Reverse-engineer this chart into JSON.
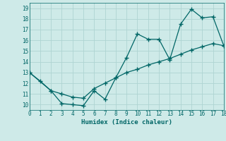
{
  "title": "",
  "xlabel": "Humidex (Indice chaleur)",
  "ylabel": "",
  "background_color": "#ceeae8",
  "line_color": "#006666",
  "grid_color": "#aed4d2",
  "line1_x": [
    0,
    1,
    2,
    3,
    4,
    5,
    6,
    7,
    8,
    9,
    10,
    11,
    12,
    13,
    14,
    15,
    16,
    17,
    18
  ],
  "line1_y": [
    13.0,
    12.2,
    11.3,
    10.1,
    10.0,
    9.9,
    11.3,
    10.5,
    12.5,
    14.4,
    16.6,
    16.1,
    16.1,
    14.2,
    17.5,
    18.9,
    18.1,
    18.2,
    15.5
  ],
  "line2_x": [
    0,
    2,
    3,
    4,
    5,
    6,
    7,
    8,
    9,
    10,
    11,
    12,
    13,
    14,
    15,
    16,
    17,
    18
  ],
  "line2_y": [
    13.0,
    11.3,
    11.0,
    10.7,
    10.6,
    11.5,
    12.0,
    12.5,
    13.0,
    13.3,
    13.7,
    14.0,
    14.3,
    14.7,
    15.1,
    15.4,
    15.7,
    15.5
  ],
  "xlim": [
    0,
    18
  ],
  "ylim": [
    9.5,
    19.5
  ],
  "xticks": [
    0,
    1,
    2,
    3,
    4,
    5,
    6,
    7,
    8,
    9,
    10,
    11,
    12,
    13,
    14,
    15,
    16,
    17,
    18
  ],
  "yticks": [
    10,
    11,
    12,
    13,
    14,
    15,
    16,
    17,
    18,
    19
  ]
}
